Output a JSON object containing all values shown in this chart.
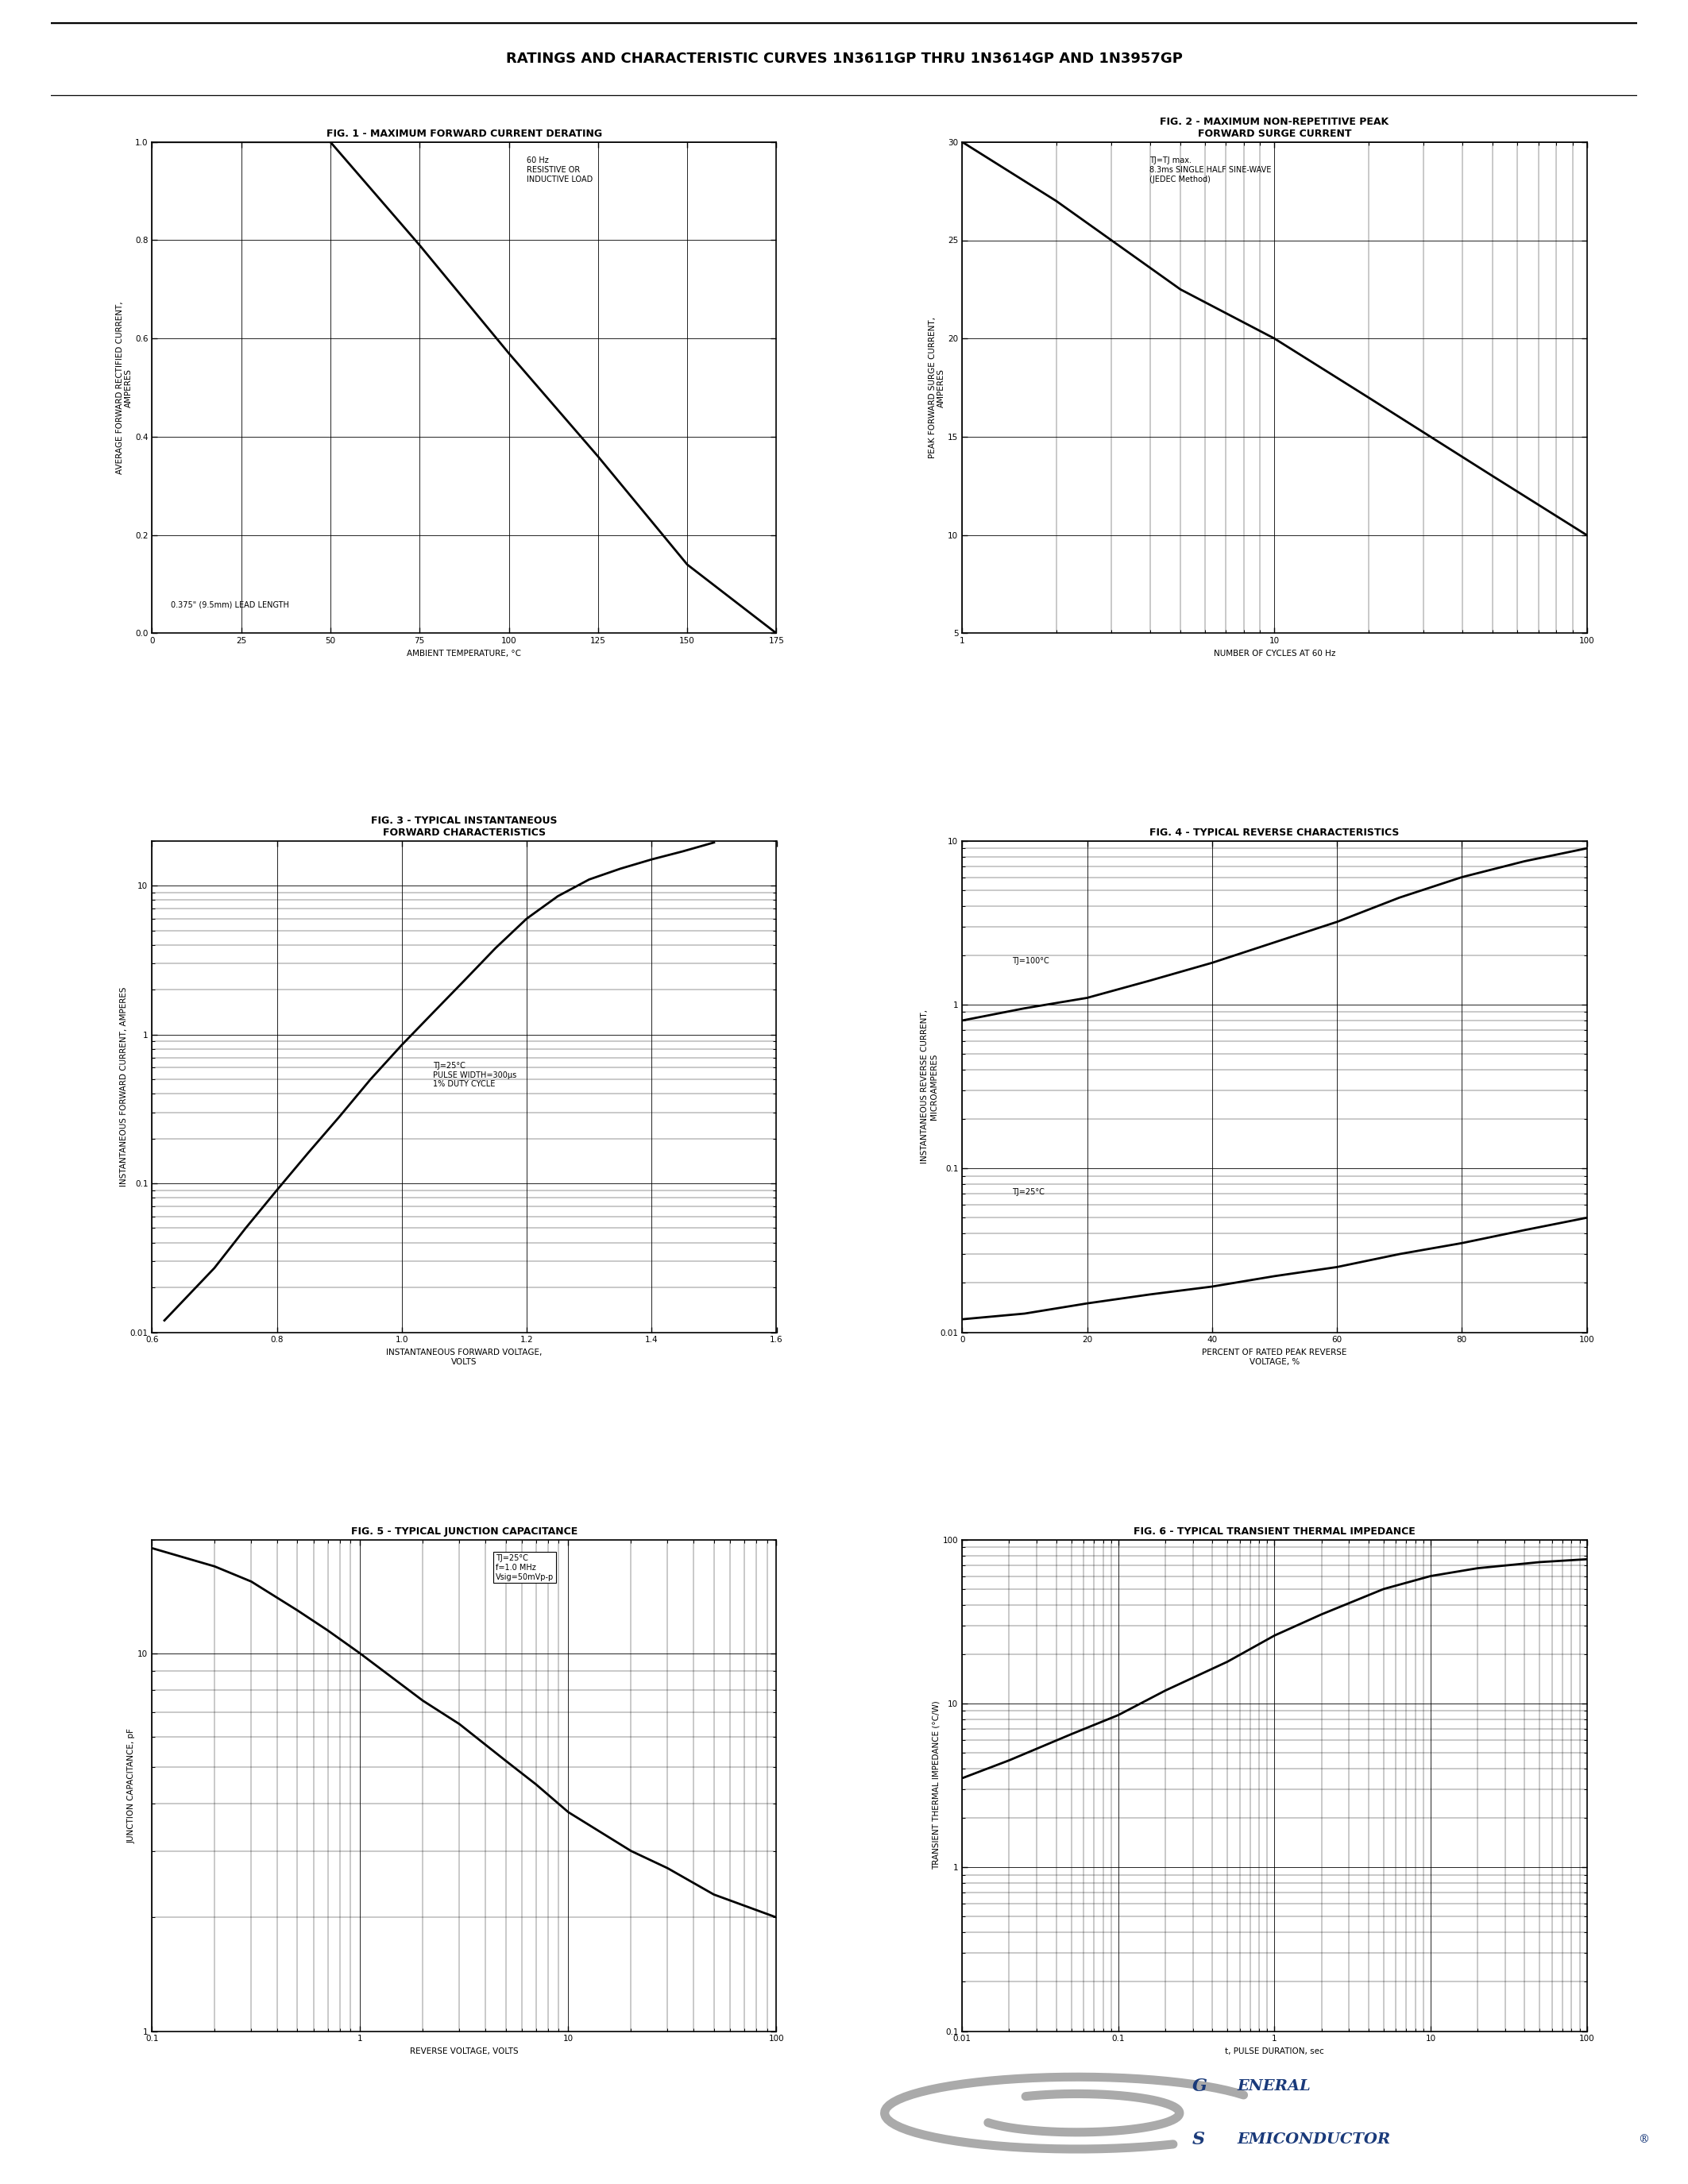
{
  "title": "RATINGS AND CHARACTERISTIC CURVES 1N3611GP THRU 1N3614GP AND 1N3957GP",
  "fig1_title": "FIG. 1 - MAXIMUM FORWARD CURRENT DERATING",
  "fig1_xlabel": "AMBIENT TEMPERATURE, °C",
  "fig1_ylabel": "AVERAGE FORWARD RECTIFIED CURRENT,\nAMPERES",
  "fig1_annotation1": "60 Hz\nRESISTIVE OR\nINDUCTIVE LOAD",
  "fig1_annotation2": "0.375\" (9.5mm) LEAD LENGTH",
  "fig1_xlim": [
    0,
    175
  ],
  "fig1_ylim": [
    0,
    1.0
  ],
  "fig1_xticks": [
    0,
    25,
    50,
    75,
    100,
    125,
    150,
    175
  ],
  "fig1_yticks": [
    0,
    0.2,
    0.4,
    0.6,
    0.8,
    1.0
  ],
  "fig1_curve_x": [
    0,
    50,
    75,
    100,
    125,
    150,
    175
  ],
  "fig1_curve_y": [
    1.0,
    1.0,
    0.79,
    0.57,
    0.36,
    0.14,
    0.0
  ],
  "fig2_title": "FIG. 2 - MAXIMUM NON-REPETITIVE PEAK\nFORWARD SURGE CURRENT",
  "fig2_xlabel": "NUMBER OF CYCLES AT 60 Hz",
  "fig2_ylabel": "PEAK FORWARD SURGE CURRENT,\nAMPERES",
  "fig2_annotation": "TJ=TJ max.\n8.3ms SINGLE HALF SINE-WAVE\n(JEDEC Method)",
  "fig2_xlim": [
    1,
    100
  ],
  "fig2_ylim": [
    5.0,
    30
  ],
  "fig2_yticks": [
    5.0,
    10,
    15,
    20,
    25,
    30
  ],
  "fig2_curve_x": [
    1,
    2,
    5,
    10,
    20,
    50,
    100
  ],
  "fig2_curve_y": [
    30,
    27,
    22.5,
    20,
    17,
    13,
    10
  ],
  "fig3_title": "FIG. 3 - TYPICAL INSTANTANEOUS\nFORWARD CHARACTERISTICS",
  "fig3_xlabel": "INSTANTANEOUS FORWARD VOLTAGE,\nVOLTS",
  "fig3_ylabel": "INSTANTANEOUS FORWARD CURRENT, AMPERES",
  "fig3_annotation": "TJ=25°C\nPULSE WIDTH=300μs\n1% DUTY CYCLE",
  "fig3_xlim": [
    0.6,
    1.6
  ],
  "fig3_ylim": [
    0.01,
    20
  ],
  "fig3_xticks": [
    0.6,
    0.8,
    1.0,
    1.2,
    1.4,
    1.6
  ],
  "fig3_curve_x": [
    0.62,
    0.66,
    0.7,
    0.75,
    0.8,
    0.85,
    0.9,
    0.95,
    1.0,
    1.05,
    1.1,
    1.15,
    1.2,
    1.25,
    1.3,
    1.35,
    1.4,
    1.45,
    1.5
  ],
  "fig3_curve_y": [
    0.012,
    0.018,
    0.027,
    0.05,
    0.09,
    0.16,
    0.28,
    0.5,
    0.85,
    1.4,
    2.3,
    3.8,
    6.0,
    8.5,
    11.0,
    13.0,
    15.0,
    17.0,
    19.5
  ],
  "fig4_title": "FIG. 4 - TYPICAL REVERSE CHARACTERISTICS",
  "fig4_xlabel": "PERCENT OF RATED PEAK REVERSE\nVOLTAGE, %",
  "fig4_ylabel": "INSTANTANEOUS REVERSE CURRENT,\nMICROAMPERES",
  "fig4_xlim": [
    0,
    100
  ],
  "fig4_ylim": [
    0.01,
    10
  ],
  "fig4_xticks": [
    0,
    20,
    40,
    60,
    80,
    100
  ],
  "fig4_curve100_x": [
    0,
    10,
    20,
    30,
    40,
    50,
    60,
    70,
    80,
    90,
    100
  ],
  "fig4_curve100_y": [
    0.8,
    0.95,
    1.1,
    1.4,
    1.8,
    2.4,
    3.2,
    4.5,
    6.0,
    7.5,
    9.0
  ],
  "fig4_curve25_x": [
    0,
    10,
    20,
    30,
    40,
    50,
    60,
    70,
    80,
    90,
    100
  ],
  "fig4_curve25_y": [
    0.012,
    0.013,
    0.015,
    0.017,
    0.019,
    0.022,
    0.025,
    0.03,
    0.035,
    0.042,
    0.05
  ],
  "fig4_label100": "TJ=100°C",
  "fig4_label25": "TJ=25°C",
  "fig5_title": "FIG. 5 - TYPICAL JUNCTION CAPACITANCE",
  "fig5_xlabel": "REVERSE VOLTAGE, VOLTS",
  "fig5_ylabel": "JUNCTION CAPACITANCE, pF",
  "fig5_annotation": "TJ=25°C\nf=1.0 MHz\nVsig=50mVp-p",
  "fig5_xlim": [
    0.1,
    100
  ],
  "fig5_ylim": [
    1,
    20
  ],
  "fig5_curve_x": [
    0.1,
    0.2,
    0.3,
    0.5,
    0.7,
    1.0,
    2,
    3,
    5,
    7,
    10,
    20,
    30,
    50,
    100
  ],
  "fig5_curve_y": [
    19,
    17,
    15.5,
    13,
    11.5,
    10,
    7.5,
    6.5,
    5.2,
    4.5,
    3.8,
    3.0,
    2.7,
    2.3,
    2.0
  ],
  "fig6_title": "FIG. 6 - TYPICAL TRANSIENT THERMAL IMPEDANCE",
  "fig6_xlabel": "t, PULSE DURATION, sec",
  "fig6_ylabel": "TRANSIENT THERMAL IMPEDANCE (°C/W)",
  "fig6_xlim": [
    0.01,
    100
  ],
  "fig6_ylim": [
    0.1,
    100
  ],
  "fig6_curve_x": [
    0.01,
    0.02,
    0.05,
    0.1,
    0.2,
    0.5,
    1.0,
    2,
    5,
    10,
    20,
    50,
    100
  ],
  "fig6_curve_y": [
    3.5,
    4.5,
    6.5,
    8.5,
    12,
    18,
    26,
    35,
    50,
    60,
    67,
    73,
    76
  ],
  "gs_logo_color": "#1a3a7a",
  "background_color": "#ffffff",
  "line_color": "#000000",
  "font_size_title": 9,
  "font_size_axis": 7.5,
  "font_size_tick": 7.5,
  "font_size_annot": 7.0,
  "font_size_header": 13
}
